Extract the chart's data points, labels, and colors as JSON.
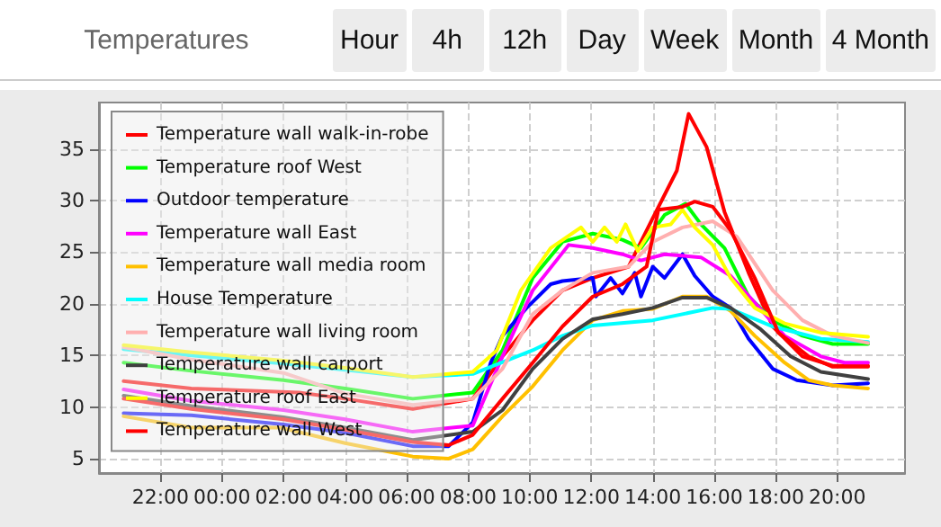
{
  "chart_data": {
    "type": "line",
    "title": "Temperatures",
    "annotations": [
      "Hour",
      "4h",
      "12h",
      "Day",
      "Week",
      "Month",
      "4 Month"
    ],
    "xlim": [
      "--01-01T20:00",
      "--01-02T22:12"
    ],
    "ylim": [
      3.6,
      39.5
    ],
    "xticks": [
      {
        "value": "--01-01T22:00",
        "label": "22:00"
      },
      {
        "value": "--01-02T00:00",
        "label": "00:00"
      },
      {
        "value": "--01-02T02:00",
        "label": "02:00"
      },
      {
        "value": "--01-02T04:00",
        "label": "04:00"
      },
      {
        "value": "--01-02T06:00",
        "label": "06:00"
      },
      {
        "value": "--01-02T08:00",
        "label": "08:00"
      },
      {
        "value": "--01-02T10:00",
        "label": "10:00"
      },
      {
        "value": "--01-02T12:00",
        "label": "12:00"
      },
      {
        "value": "--01-02T14:00",
        "label": "14:00"
      },
      {
        "value": "--01-02T16:00",
        "label": "16:00"
      },
      {
        "value": "--01-02T18:00",
        "label": "18:00"
      },
      {
        "value": "--01-02T20:00",
        "label": "20:00"
      }
    ],
    "yticks": [
      5,
      10,
      15,
      20,
      25,
      30,
      35
    ],
    "grid": true,
    "legend": "top left",
    "marker": "none",
    "line_style": "solid",
    "series": [
      {
        "name": "Temperature wall walk-in-robe",
        "color": "#ff0000",
        "x": [
          "--01-01T20:48",
          "--01-01T23:00",
          "--01-02T02:30",
          "--01-02T04:00",
          "--01-02T06:12",
          "--01-02T08:09",
          "--01-02T09:07",
          "--01-02T10:06",
          "--01-02T11:04",
          "--01-02T12:03",
          "--01-02T13:13",
          "--01-02T14:00",
          "--01-02T14:47",
          "--01-02T15:10",
          "--01-02T15:45",
          "--01-02T16:20",
          "--01-02T17:07",
          "--01-02T17:54",
          "--01-02T18:52",
          "--01-02T19:51",
          "--01-02T21:00"
        ],
        "values": [
          12.5,
          11.8,
          11.4,
          10.8,
          9.8,
          10.8,
          14.9,
          18.4,
          21.3,
          22.5,
          23.6,
          28.3,
          32.9,
          38.4,
          35.2,
          28.9,
          23.0,
          17.8,
          14.9,
          14.0,
          14.0
        ]
      },
      {
        "name": "Temperature roof West",
        "color": "#00ff00",
        "x": [
          "--01-01T20:48",
          "--01-01T23:00",
          "--01-02T02:00",
          "--01-02T04:00",
          "--01-02T06:12",
          "--01-02T08:09",
          "--01-02T09:07",
          "--01-02T10:06",
          "--01-02T11:04",
          "--01-02T12:03",
          "--01-02T13:01",
          "--01-02T13:37",
          "--01-02T14:23",
          "--01-02T15:04",
          "--01-02T15:34",
          "--01-02T16:20",
          "--01-02T17:07",
          "--01-02T17:54",
          "--01-02T18:52",
          "--01-02T19:51",
          "--01-02T21:00"
        ],
        "values": [
          14.3,
          13.5,
          12.6,
          11.8,
          10.8,
          11.4,
          15.5,
          22.5,
          26.0,
          26.8,
          26.2,
          25.4,
          28.6,
          29.7,
          27.7,
          25.4,
          20.7,
          18.4,
          16.9,
          16.1,
          16.1
        ]
      },
      {
        "name": "Outdoor temperature",
        "color": "#0000ff",
        "x": [
          "--01-01T20:48",
          "--01-01T23:00",
          "--01-02T02:00",
          "--01-02T04:00",
          "--01-02T06:12",
          "--01-02T07:22",
          "--01-02T08:09",
          "--01-02T08:44",
          "--01-02T09:07",
          "--01-02T09:54",
          "--01-02T10:41",
          "--01-02T11:04",
          "--01-02T12:03",
          "--01-02T12:09",
          "--01-02T12:38",
          "--01-02T13:01",
          "--01-02T13:25",
          "--01-02T13:37",
          "--01-02T14:00",
          "--01-02T14:23",
          "--01-02T14:58",
          "--01-02T15:22",
          "--01-02T15:57",
          "--01-02T16:32",
          "--01-02T17:07",
          "--01-02T17:54",
          "--01-02T18:41",
          "--01-02T19:51",
          "--01-02T21:00"
        ],
        "values": [
          9.4,
          9.2,
          8.3,
          7.5,
          6.2,
          6.2,
          8.5,
          14.3,
          16.9,
          19.6,
          21.9,
          22.2,
          22.5,
          20.7,
          22.5,
          21.0,
          23.0,
          20.7,
          23.6,
          22.5,
          24.8,
          22.7,
          20.7,
          19.6,
          16.6,
          13.7,
          12.6,
          12.1,
          12.3
        ]
      },
      {
        "name": "Temperature wall East",
        "color": "#ff00ff",
        "x": [
          "--01-01T20:48",
          "--01-01T23:00",
          "--01-02T02:00",
          "--01-02T04:00",
          "--01-02T06:12",
          "--01-02T08:09",
          "--01-02T09:07",
          "--01-02T10:06",
          "--01-02T11:16",
          "--01-02T12:03",
          "--01-02T13:01",
          "--01-02T13:37",
          "--01-02T14:23",
          "--01-02T15:34",
          "--01-02T16:32",
          "--01-02T17:19",
          "--01-02T18:17",
          "--01-02T19:28",
          "--01-02T20:14",
          "--01-02T21:00"
        ],
        "values": [
          11.7,
          10.6,
          9.7,
          8.8,
          7.6,
          8.2,
          14.9,
          21.3,
          25.7,
          25.4,
          24.8,
          24.2,
          24.8,
          24.5,
          22.7,
          20.1,
          16.9,
          14.9,
          14.3,
          14.3
        ]
      },
      {
        "name": "Temperature wall media room",
        "color": "#ffc000",
        "x": [
          "--01-01T20:48",
          "--01-01T23:00",
          "--01-02T01:54",
          "--01-02T04:00",
          "--01-02T06:12",
          "--01-02T07:22",
          "--01-02T08:09",
          "--01-02T09:07",
          "--01-02T10:06",
          "--01-02T11:04",
          "--01-02T12:03",
          "--01-02T13:01",
          "--01-02T14:00",
          "--01-02T14:58",
          "--01-02T15:45",
          "--01-02T16:32",
          "--01-02T17:19",
          "--01-02T18:17",
          "--01-02T19:04",
          "--01-02T19:51",
          "--01-02T21:00"
        ],
        "values": [
          9.1,
          8.0,
          8.0,
          6.5,
          5.2,
          5.0,
          5.9,
          9.1,
          12.0,
          15.5,
          18.4,
          19.3,
          19.5,
          20.7,
          20.7,
          19.3,
          16.9,
          14.3,
          12.6,
          12.1,
          11.8
        ]
      },
      {
        "name": "House Temperature",
        "color": "#00ffff",
        "x": [
          "--01-01T20:48",
          "--01-01T23:00",
          "--01-02T02:00",
          "--01-02T04:00",
          "--01-02T06:12",
          "--01-02T08:09",
          "--01-02T10:06",
          "--01-02T11:04",
          "--01-02T12:03",
          "--01-02T14:00",
          "--01-02T15:57",
          "--01-02T16:32",
          "--01-02T17:54",
          "--01-02T19:28",
          "--01-02T21:00"
        ],
        "values": [
          15.6,
          15.0,
          14.2,
          13.6,
          12.9,
          13.2,
          15.5,
          16.9,
          17.9,
          18.4,
          19.6,
          19.5,
          17.8,
          16.6,
          16.3
        ]
      },
      {
        "name": "Temperature wall living room",
        "color": "#ffafaf",
        "x": [
          "--01-01T20:48",
          "--01-01T23:00",
          "--01-02T02:00",
          "--01-02T04:00",
          "--01-02T06:12",
          "--01-02T08:09",
          "--01-02T09:07",
          "--01-02T10:06",
          "--01-02T11:04",
          "--01-02T12:03",
          "--01-02T13:13",
          "--01-02T14:00",
          "--01-02T14:58",
          "--01-02T15:57",
          "--01-02T16:44",
          "--01-02T17:54",
          "--01-02T18:52",
          "--01-02T19:51",
          "--01-02T21:00"
        ],
        "values": [
          15.8,
          14.6,
          13.3,
          11.3,
          10.2,
          10.8,
          13.7,
          19.0,
          21.3,
          23.0,
          23.6,
          26.0,
          27.4,
          28.0,
          26.5,
          21.3,
          18.4,
          16.9,
          16.2
        ]
      },
      {
        "name": "Temperature wall carport",
        "color": "#404040",
        "x": [
          "--01-01T20:48",
          "--01-01T23:00",
          "--01-02T02:00",
          "--01-02T04:00",
          "--01-02T06:12",
          "--01-02T08:09",
          "--01-02T09:07",
          "--01-02T10:06",
          "--01-02T11:04",
          "--01-02T12:03",
          "--01-02T13:01",
          "--01-02T14:00",
          "--01-02T14:58",
          "--01-02T15:45",
          "--01-02T16:32",
          "--01-02T17:31",
          "--01-02T18:29",
          "--01-02T19:28",
          "--01-02T21:00"
        ],
        "values": [
          11.1,
          10.1,
          9.0,
          8.0,
          6.8,
          7.6,
          9.7,
          13.7,
          16.6,
          18.5,
          19.0,
          19.6,
          20.6,
          20.6,
          19.6,
          17.5,
          14.9,
          13.4,
          12.7
        ]
      },
      {
        "name": "Temperature roof East",
        "color": "#ffff00",
        "x": [
          "--01-01T20:48",
          "--01-01T23:00",
          "--01-02T02:00",
          "--01-02T04:00",
          "--01-02T06:12",
          "--01-02T08:09",
          "--01-02T08:56",
          "--01-02T09:43",
          "--01-02T10:41",
          "--01-02T11:40",
          "--01-02T12:03",
          "--01-02T12:26",
          "--01-02T12:50",
          "--01-02T13:07",
          "--01-02T13:31",
          "--01-02T14:00",
          "--01-02T14:35",
          "--01-02T14:58",
          "--01-02T15:22",
          "--01-02T15:57",
          "--01-02T16:32",
          "--01-02T17:19",
          "--01-02T18:17",
          "--01-02T19:28",
          "--01-02T21:00"
        ],
        "values": [
          16.0,
          15.3,
          14.5,
          13.8,
          12.9,
          13.4,
          15.5,
          21.3,
          25.4,
          27.4,
          26.0,
          27.4,
          26.0,
          27.7,
          25.1,
          27.4,
          27.7,
          29.1,
          27.4,
          25.7,
          22.5,
          19.6,
          18.1,
          17.2,
          16.8
        ]
      },
      {
        "name": "Temperature wall West",
        "color": "#ff0000",
        "x": [
          "--01-01T20:48",
          "--01-01T23:00",
          "--01-02T02:00",
          "--01-02T04:00",
          "--01-02T06:12",
          "--01-02T07:22",
          "--01-02T08:09",
          "--01-02T09:07",
          "--01-02T10:06",
          "--01-02T11:04",
          "--01-02T12:03",
          "--01-02T13:01",
          "--01-02T13:48",
          "--01-02T14:11",
          "--01-02T14:58",
          "--01-02T15:22",
          "--01-02T15:57",
          "--01-02T16:32",
          "--01-02T17:19",
          "--01-02T18:05",
          "--01-02T19:04",
          "--01-02T19:51",
          "--01-02T21:00"
        ],
        "values": [
          10.8,
          9.8,
          8.8,
          7.8,
          6.6,
          6.3,
          7.3,
          10.8,
          14.3,
          17.8,
          20.7,
          21.9,
          23.6,
          29.1,
          29.4,
          29.9,
          29.4,
          27.1,
          22.5,
          17.2,
          14.9,
          13.9,
          13.9
        ]
      }
    ]
  }
}
